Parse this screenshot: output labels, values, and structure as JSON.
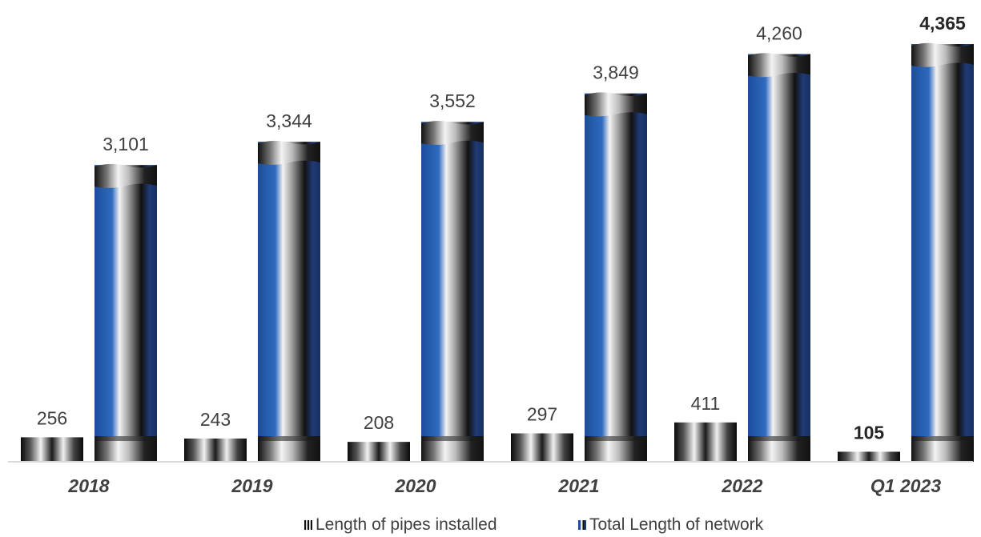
{
  "chart_data": {
    "type": "bar",
    "categories": [
      "2018",
      "2019",
      "2020",
      "2021",
      "2022",
      "Q1 2023"
    ],
    "series": [
      {
        "name": "Length of pipes installed",
        "values": [
          256,
          243,
          208,
          297,
          411,
          105
        ],
        "labels": [
          "256",
          "243",
          "208",
          "297",
          "411",
          "105"
        ]
      },
      {
        "name": "Total Length of network",
        "values": [
          3101,
          3344,
          3552,
          3849,
          4260,
          4365
        ],
        "labels": [
          "3,101",
          "3,344",
          "3,552",
          "3,849",
          "4,260",
          "4,365"
        ]
      }
    ],
    "emphasized_category": "Q1 2023",
    "xlabel": "",
    "ylabel": "",
    "ylim": [
      0,
      4365
    ],
    "grid": false,
    "legend_position": "bottom",
    "colors": {
      "pipe_dark": "#111111",
      "pipe_light": "#e8e8e8",
      "network_blue": "#1f4e96",
      "axis": "#d9d9d9"
    }
  }
}
